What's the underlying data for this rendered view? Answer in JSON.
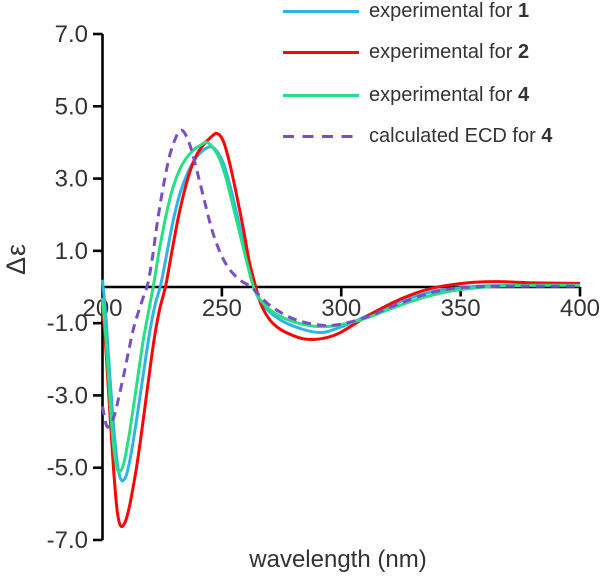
{
  "chart_data": {
    "type": "line",
    "title": "",
    "xlabel": "wavelength (nm)",
    "ylabel": "Δε",
    "xlim": [
      200,
      400
    ],
    "ylim": [
      -7,
      7
    ],
    "xticks": [
      200,
      250,
      300,
      350,
      400
    ],
    "xtick_labels": [
      "200",
      "250",
      "300",
      "350",
      "400"
    ],
    "yticks": [
      7,
      5,
      3,
      1,
      -1,
      -3,
      -5,
      -7
    ],
    "ytick_labels": [
      "7.0",
      "5.0",
      "3.0",
      "1.0",
      "-1.0",
      "-3.0",
      "-5.0",
      "-7.0"
    ],
    "grid": false,
    "legend_position": "top-right",
    "axis_color": "#000000",
    "text_color": "#333333",
    "series": [
      {
        "name": "experimental for 1",
        "legend_text": "experimental for ",
        "legend_bold": "1",
        "color": "#2FB4EA",
        "style": "solid",
        "points": [
          [
            200,
            0.2
          ],
          [
            201.5,
            -0.9
          ],
          [
            203,
            -2.4
          ],
          [
            205,
            -4.1
          ],
          [
            206.5,
            -5.0
          ],
          [
            208,
            -5.35
          ],
          [
            210,
            -5.2
          ],
          [
            212,
            -4.6
          ],
          [
            214,
            -3.8
          ],
          [
            216,
            -2.9
          ],
          [
            218,
            -2.0
          ],
          [
            220,
            -1.15
          ],
          [
            222,
            -0.5
          ],
          [
            224.5,
            0.1
          ],
          [
            227,
            0.95
          ],
          [
            229.5,
            1.8
          ],
          [
            232.5,
            2.6
          ],
          [
            236,
            3.2
          ],
          [
            239.5,
            3.6
          ],
          [
            243,
            3.82
          ],
          [
            245.5,
            3.88
          ],
          [
            248,
            3.75
          ],
          [
            251,
            3.35
          ],
          [
            254,
            2.65
          ],
          [
            257,
            1.8
          ],
          [
            260,
            0.9
          ],
          [
            262,
            0.3
          ],
          [
            264.5,
            -0.2
          ],
          [
            268,
            -0.55
          ],
          [
            272,
            -0.8
          ],
          [
            277,
            -1.0
          ],
          [
            283,
            -1.15
          ],
          [
            288,
            -1.24
          ],
          [
            293,
            -1.25
          ],
          [
            298,
            -1.15
          ],
          [
            304,
            -1.0
          ],
          [
            310,
            -0.82
          ],
          [
            317,
            -0.62
          ],
          [
            324,
            -0.42
          ],
          [
            331,
            -0.26
          ],
          [
            338,
            -0.13
          ],
          [
            345,
            -0.06
          ],
          [
            353,
            0.0
          ],
          [
            363,
            0.04
          ],
          [
            378,
            0.05
          ],
          [
            400,
            0.05
          ]
        ]
      },
      {
        "name": "experimental for 2",
        "legend_text": "experimental for ",
        "legend_bold": "2",
        "color": "#FA0606",
        "style": "solid",
        "points": [
          [
            200,
            -0.5
          ],
          [
            201.5,
            -1.8
          ],
          [
            203,
            -3.4
          ],
          [
            204.5,
            -4.9
          ],
          [
            206,
            -6.1
          ],
          [
            207.5,
            -6.6
          ],
          [
            209.5,
            -6.5
          ],
          [
            211.5,
            -6.0
          ],
          [
            214,
            -5.1
          ],
          [
            216,
            -4.2
          ],
          [
            218,
            -3.2
          ],
          [
            220,
            -2.2
          ],
          [
            222,
            -1.3
          ],
          [
            224,
            -0.6
          ],
          [
            226.5,
            0.05
          ],
          [
            229,
            0.95
          ],
          [
            232,
            2.0
          ],
          [
            235.5,
            2.95
          ],
          [
            239,
            3.6
          ],
          [
            242.5,
            3.95
          ],
          [
            245.5,
            4.15
          ],
          [
            248,
            4.25
          ],
          [
            250.5,
            4.05
          ],
          [
            253,
            3.5
          ],
          [
            256,
            2.6
          ],
          [
            259,
            1.6
          ],
          [
            261.5,
            0.7
          ],
          [
            264,
            0.05
          ],
          [
            266.5,
            -0.5
          ],
          [
            270,
            -0.9
          ],
          [
            274,
            -1.15
          ],
          [
            279,
            -1.32
          ],
          [
            284,
            -1.43
          ],
          [
            289,
            -1.45
          ],
          [
            294,
            -1.4
          ],
          [
            299,
            -1.28
          ],
          [
            305,
            -1.05
          ],
          [
            311,
            -0.8
          ],
          [
            318,
            -0.55
          ],
          [
            325,
            -0.33
          ],
          [
            332,
            -0.15
          ],
          [
            339,
            -0.02
          ],
          [
            347,
            0.07
          ],
          [
            356,
            0.13
          ],
          [
            366,
            0.15
          ],
          [
            378,
            0.12
          ],
          [
            400,
            0.1
          ]
        ]
      },
      {
        "name": "experimental for 4",
        "legend_text": "experimental for ",
        "legend_bold": "4",
        "color": "#27DF85",
        "style": "solid",
        "points": [
          [
            200,
            -0.3
          ],
          [
            201.5,
            -1.5
          ],
          [
            203,
            -3.0
          ],
          [
            204.5,
            -4.3
          ],
          [
            206,
            -5.0
          ],
          [
            207.5,
            -5.1
          ],
          [
            209,
            -4.85
          ],
          [
            211,
            -4.15
          ],
          [
            213,
            -3.3
          ],
          [
            215,
            -2.4
          ],
          [
            217,
            -1.5
          ],
          [
            219.5,
            -0.6
          ],
          [
            221.5,
            0.1
          ],
          [
            224,
            1.1
          ],
          [
            227,
            2.1
          ],
          [
            230,
            2.85
          ],
          [
            233.5,
            3.4
          ],
          [
            237.5,
            3.75
          ],
          [
            241,
            3.92
          ],
          [
            243.5,
            4.0
          ],
          [
            246,
            3.88
          ],
          [
            249,
            3.55
          ],
          [
            252,
            2.95
          ],
          [
            255,
            2.15
          ],
          [
            258,
            1.35
          ],
          [
            261,
            0.55
          ],
          [
            263.5,
            -0.05
          ],
          [
            266,
            -0.35
          ],
          [
            270,
            -0.62
          ],
          [
            275,
            -0.83
          ],
          [
            281,
            -0.98
          ],
          [
            287,
            -1.07
          ],
          [
            293,
            -1.1
          ],
          [
            299,
            -1.05
          ],
          [
            306,
            -0.95
          ],
          [
            313,
            -0.8
          ],
          [
            320,
            -0.62
          ],
          [
            327,
            -0.45
          ],
          [
            334,
            -0.3
          ],
          [
            341,
            -0.18
          ],
          [
            348,
            -0.09
          ],
          [
            357,
            -0.02
          ],
          [
            368,
            0.03
          ],
          [
            383,
            0.05
          ],
          [
            400,
            0.05
          ]
        ]
      },
      {
        "name": "calculated ECD for 4",
        "legend_text": "calculated ECD for ",
        "legend_bold": "4",
        "color": "#7A4EC4",
        "style": "dashed",
        "points": [
          [
            200,
            -3.3
          ],
          [
            201.5,
            -3.8
          ],
          [
            203,
            -3.85
          ],
          [
            205,
            -3.55
          ],
          [
            207,
            -3.0
          ],
          [
            209,
            -2.4
          ],
          [
            211,
            -1.75
          ],
          [
            213,
            -1.15
          ],
          [
            215,
            -0.7
          ],
          [
            217,
            -0.3
          ],
          [
            219,
            0.1
          ],
          [
            221,
            0.85
          ],
          [
            223,
            1.8
          ],
          [
            225.5,
            2.8
          ],
          [
            228,
            3.6
          ],
          [
            230.5,
            4.1
          ],
          [
            232.5,
            4.33
          ],
          [
            234.5,
            4.25
          ],
          [
            237,
            3.85
          ],
          [
            240,
            3.1
          ],
          [
            243,
            2.3
          ],
          [
            246,
            1.55
          ],
          [
            249,
            1.0
          ],
          [
            252,
            0.6
          ],
          [
            255,
            0.35
          ],
          [
            258.5,
            0.15
          ],
          [
            262,
            0.02
          ],
          [
            265,
            -0.18
          ],
          [
            269,
            -0.45
          ],
          [
            274,
            -0.68
          ],
          [
            280,
            -0.88
          ],
          [
            286,
            -1.0
          ],
          [
            292,
            -1.06
          ],
          [
            298,
            -1.05
          ],
          [
            305,
            -0.95
          ],
          [
            312,
            -0.8
          ],
          [
            319,
            -0.6
          ],
          [
            326,
            -0.42
          ],
          [
            333,
            -0.25
          ],
          [
            340,
            -0.12
          ],
          [
            347,
            -0.04
          ],
          [
            355,
            0.0
          ],
          [
            366,
            0.02
          ],
          [
            382,
            0.02
          ],
          [
            400,
            0.02
          ]
        ]
      }
    ]
  }
}
